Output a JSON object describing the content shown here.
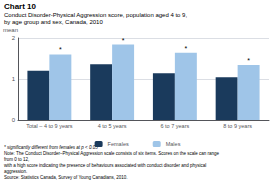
{
  "chart_data": {
    "type": "bar",
    "title": "Chart 10",
    "subtitle": [
      "Conduct Disorder-Physical Aggression score, population aged 4 to 9,",
      "by age group and sex, Canada, 2010"
    ],
    "ylabel": "mean",
    "categories": [
      "Total – 4 to 9 years",
      "4 to 5 years",
      "6 to 7 years",
      "8 to 9 years"
    ],
    "series": [
      {
        "name": "Females",
        "color": "#1a3a5c",
        "values": [
          1.2,
          1.36,
          1.14,
          1.04
        ]
      },
      {
        "name": "Males",
        "color": "#9fc5e8",
        "values": [
          1.6,
          1.84,
          1.64,
          1.34
        ]
      }
    ],
    "ylim": [
      0,
      2.0
    ],
    "yticks": [
      0,
      1,
      2
    ],
    "grid": true,
    "legend": "bottom",
    "annotations": [
      {
        "text": "*",
        "series": "Males",
        "category": "Total – 4 to 9 years"
      },
      {
        "text": "*",
        "series": "Males",
        "category": "4 to 5 years"
      },
      {
        "text": "*",
        "series": "Males",
        "category": "6 to 7 years"
      },
      {
        "text": "*",
        "series": "Males",
        "category": "8 to 9 years"
      }
    ],
    "footnotes": [
      "* significantly different from females at p < 0.05",
      "Note: The Conduct Disorder–Physical Aggression scale consists of six items. Scores on the scale can range from 0 to 12,",
      "with a high score indicating the presence of behaviours associated with conduct disorder and physical aggression.",
      "Source: Statistics Canada, Survey of Young Canadians, 2010."
    ]
  }
}
